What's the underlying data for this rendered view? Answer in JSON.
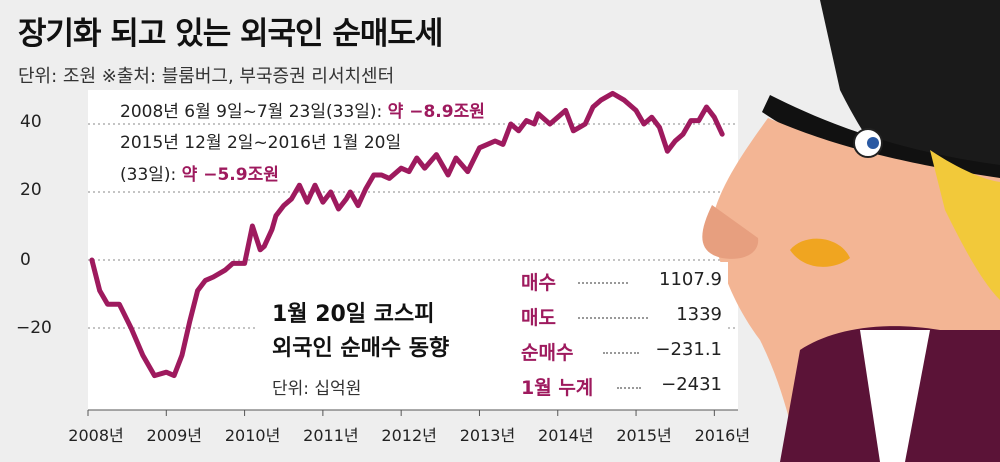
{
  "title": "장기화 되고 있는 외국인 순매도세",
  "meta": "단위: 조원 ※출처: 블룸버그, 부국증권 리서치센터",
  "notes": {
    "line1_text": "2008년 6월 9일~7월 23일(33일): ",
    "line1_value": "약 −8.9조원",
    "line2_text": "2015년 12월 2일~2016년 1월 20일",
    "line3_text": "(33일): ",
    "line3_value": "약 −5.9조원"
  },
  "inset": {
    "title_line1": "1월 20일 코스피",
    "title_line2": "외국인 순매수 동향",
    "unit": "단위: 십억원",
    "rows": [
      {
        "label": "매수",
        "value": "1107.9"
      },
      {
        "label": "매도",
        "value": "1339"
      },
      {
        "label": "순매수",
        "value": "−231.1"
      },
      {
        "label": "1월 누계",
        "value": "−2431"
      }
    ]
  },
  "colors": {
    "line": "#9e1a5e",
    "accent": "#9e1a5e",
    "character_bg": "#6b1640"
  },
  "chart_data": {
    "type": "line",
    "title": "장기화 되고 있는 외국인 순매도세",
    "ylabel": "단위: 조원",
    "ylim": [
      -45,
      50
    ],
    "yticks": [
      "40",
      "20",
      "0",
      "−20"
    ],
    "ytick_values": [
      40,
      20,
      0,
      -20
    ],
    "x_tick_labels": [
      "2008년",
      "2009년",
      "2010년",
      "2011년",
      "2012년",
      "2013년",
      "2014년",
      "2015년",
      "2016년"
    ],
    "x_tick_values": [
      2008,
      2009,
      2010,
      2011,
      2012,
      2013,
      2014,
      2015,
      2016
    ],
    "xlim": [
      2008,
      2016.2
    ],
    "series": [
      {
        "x": [
          2008.05,
          2008.15,
          2008.25,
          2008.4,
          2008.55,
          2008.7,
          2008.85,
          2009.0,
          2009.1,
          2009.2,
          2009.3,
          2009.4,
          2009.5,
          2009.6,
          2009.75,
          2009.85,
          2010.0,
          2010.1,
          2010.2,
          2010.25,
          2010.35,
          2010.4,
          2010.5,
          2010.6,
          2010.7,
          2010.8,
          2010.9,
          2011.0,
          2011.1,
          2011.2,
          2011.3,
          2011.35,
          2011.45,
          2011.55,
          2011.65,
          2011.75,
          2011.85,
          2012.0,
          2012.1,
          2012.2,
          2012.3,
          2012.45,
          2012.6,
          2012.7,
          2012.85,
          2013.0,
          2013.1,
          2013.2,
          2013.3,
          2013.4,
          2013.5,
          2013.6,
          2013.7,
          2013.75,
          2013.9,
          2014.0,
          2014.1,
          2014.2,
          2014.35,
          2014.45,
          2014.55,
          2014.7,
          2014.85,
          2015.0,
          2015.1,
          2015.2,
          2015.3,
          2015.4,
          2015.5,
          2015.6,
          2015.7,
          2015.8,
          2015.9,
          2016.0,
          2016.1
        ],
        "y": [
          0,
          -9,
          -13,
          -13,
          -20,
          -28,
          -34,
          -33,
          -34,
          -28,
          -18,
          -9,
          -6,
          -5,
          -3,
          -1,
          -1,
          10,
          3,
          4,
          9,
          13,
          16,
          18,
          22,
          17,
          22,
          17,
          20,
          15,
          18,
          20,
          16,
          21,
          25,
          25,
          24,
          27,
          26,
          30,
          27,
          31,
          25,
          30,
          26,
          33,
          34,
          35,
          34,
          40,
          38,
          41,
          40,
          43,
          40,
          42,
          44,
          38,
          40,
          45,
          47,
          49,
          47,
          44,
          40,
          42,
          39,
          32,
          35,
          37,
          41,
          41,
          45,
          42,
          37
        ]
      }
    ],
    "grid": true
  }
}
